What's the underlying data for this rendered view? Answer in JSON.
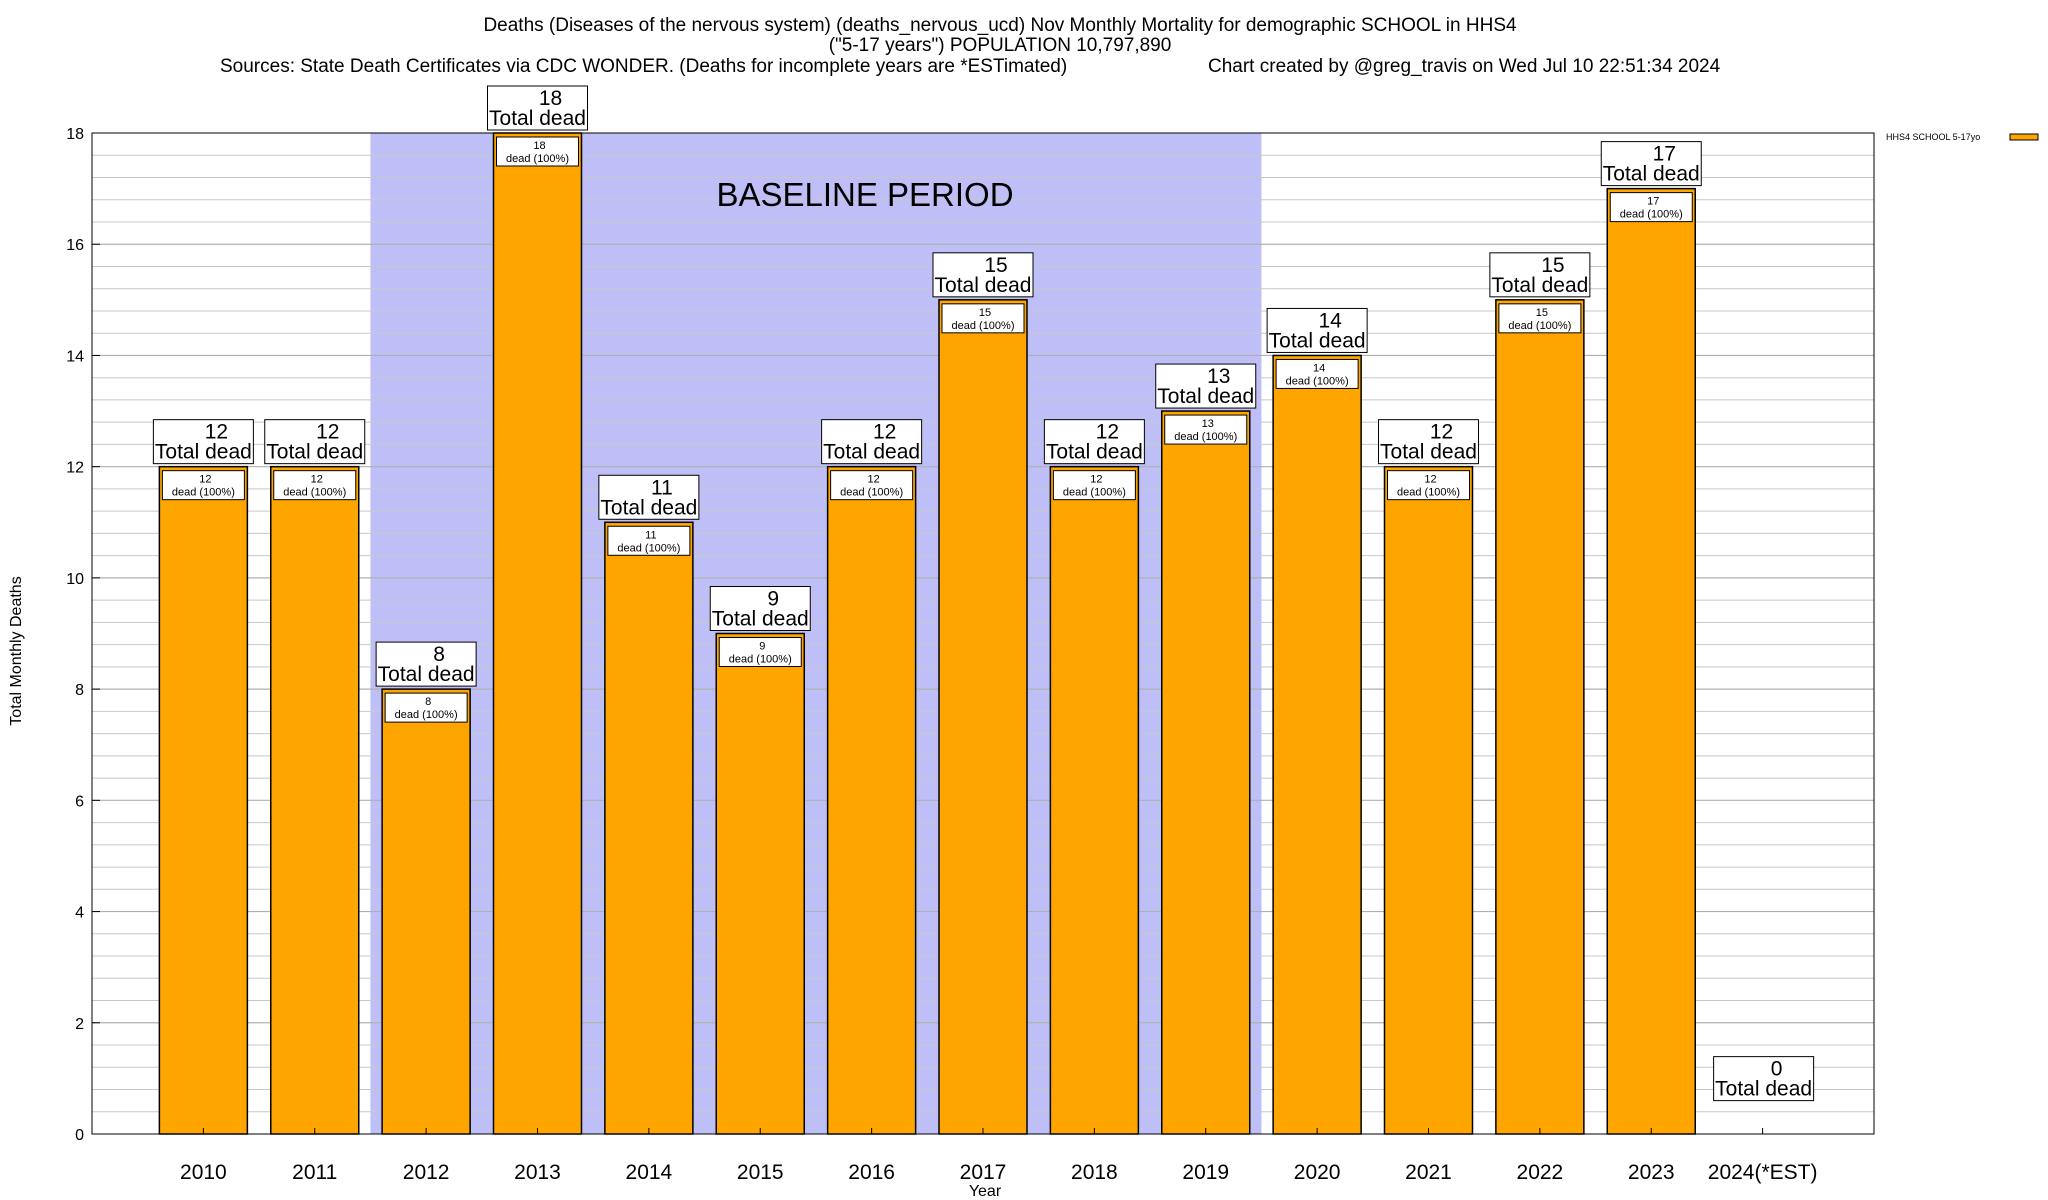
{
  "chart_data": {
    "type": "bar",
    "title_lines": [
      "Deaths (Diseases of the nervous system) (deaths_nervous_ucd) Nov Monthly Mortality for demographic SCHOOL in HHS4",
      "(\"5-17 years\") POPULATION 10,797,890"
    ],
    "sources": "Sources: State Death Certificates via CDC WONDER. (Deaths for incomplete years are *ESTimated)",
    "credit": "Chart created by @greg_travis on Wed Jul 10 22:51:34 2024",
    "xlabel": "Year",
    "ylabel": "Total Monthly Deaths",
    "ylim": [
      0,
      18
    ],
    "y_ticks": [
      0,
      2,
      4,
      6,
      8,
      10,
      12,
      14,
      16,
      18
    ],
    "y_minor_step": 0.4,
    "categories": [
      "2010",
      "2011",
      "2012",
      "2013",
      "2014",
      "2015",
      "2016",
      "2017",
      "2018",
      "2019",
      "2020",
      "2021",
      "2022",
      "2023",
      "2024(*EST)"
    ],
    "series": [
      {
        "name": "HHS4 SCHOOL 5-17yo",
        "color": "#ffa500",
        "values": [
          12,
          12,
          8,
          18,
          11,
          9,
          12,
          15,
          12,
          13,
          14,
          12,
          15,
          17,
          0
        ]
      }
    ],
    "total_label": "Total dead",
    "inner_label": "dead (100%)",
    "baseline": {
      "label": "BASELINE PERIOD",
      "start": "2012",
      "end": "2019",
      "color": "#bfbff8"
    },
    "legend_position": "top-right",
    "grid": true
  }
}
